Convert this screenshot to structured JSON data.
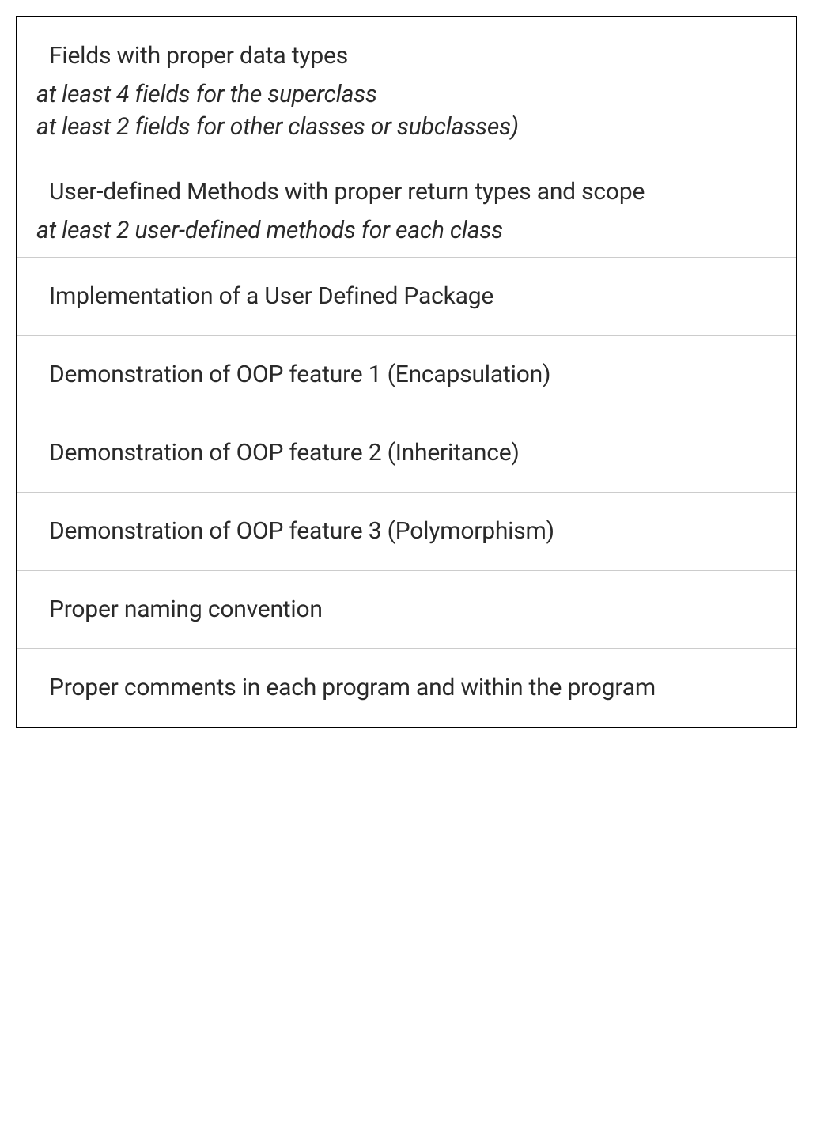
{
  "table": {
    "border_color": "#000000",
    "divider_color": "#cccccc",
    "background_color": "#ffffff",
    "text_color": "#2a2a2a",
    "title_fontsize": 30,
    "subtitle_fontsize": 30,
    "subtitle_style": "italic",
    "rows": [
      {
        "title": "Fields with proper data types",
        "subtitle_lines": [
          "at least 4 fields for the superclass",
          "at least 2 fields for other classes or subclasses)"
        ]
      },
      {
        "title": "User-defined Methods with proper return types and scope",
        "subtitle_lines": [
          "at least 2 user-defined methods for each class"
        ]
      },
      {
        "title": "Implementation of a User Defined Package",
        "subtitle_lines": []
      },
      {
        "title": "Demonstration of OOP feature 1 (Encapsulation)",
        "subtitle_lines": []
      },
      {
        "title": "Demonstration of OOP feature 2 (Inheritance)",
        "subtitle_lines": []
      },
      {
        "title": "Demonstration of OOP feature 3 (Polymorphism)",
        "subtitle_lines": []
      },
      {
        "title": "Proper naming convention",
        "subtitle_lines": []
      },
      {
        "title": "Proper comments in each program and within the program",
        "subtitle_lines": []
      }
    ]
  }
}
